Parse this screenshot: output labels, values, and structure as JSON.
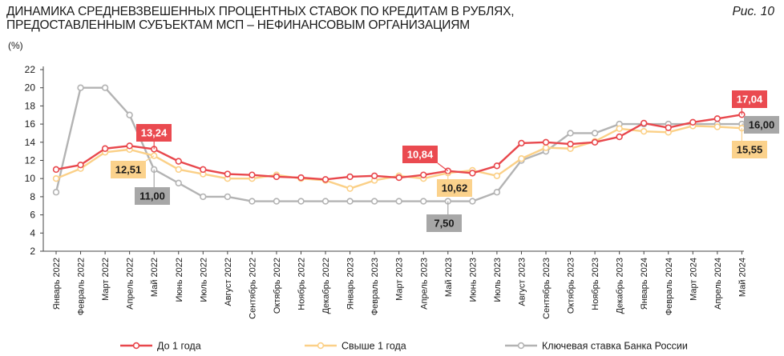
{
  "header": {
    "title_line1": "ДИНАМИКА СРЕДНЕВЗВЕШЕННЫХ ПРОЦЕНТНЫХ СТАВОК ПО КРЕДИТАМ В РУБЛЯХ,",
    "title_line2": "ПРЕДОСТАВЛЕННЫМ СУБЪЕКТАМ МСП – НЕФИНАНСОВЫМ ОРГАНИЗАЦИЯМ",
    "figure_label": "Рис. 10",
    "unit": "(%)"
  },
  "colors": {
    "red": "#e8474c",
    "yellow": "#fbd087",
    "gray": "#b3b3b3",
    "red_label_bg": "#ea4a50",
    "yellow_label_bg": "#fbd28c",
    "gray_label_bg": "#a7a7a7"
  },
  "chart_data": {
    "type": "line",
    "categories": [
      "Январь 2022",
      "Февраль 2022",
      "Март 2022",
      "Апрель 2022",
      "Май 2022",
      "Июнь 2022",
      "Июль 2022",
      "Август 2022",
      "Сентябрь 2022",
      "Октябрь 2022",
      "Ноябрь 2022",
      "Декабрь 2022",
      "Январь 2023",
      "Февраль 2023",
      "Март 2023",
      "Апрель 2023",
      "Май 2023",
      "Июнь 2023",
      "Июль 2023",
      "Август 2023",
      "Сентябрь 2023",
      "Октябрь 2023",
      "Ноябрь 2023",
      "Декабрь 2023",
      "Январь 2024",
      "Февраль 2024",
      "Март 2024",
      "Апрель 2024",
      "Май 2024"
    ],
    "ylim": [
      2,
      22
    ],
    "yticks": [
      2,
      4,
      6,
      8,
      10,
      12,
      14,
      16,
      18,
      20,
      22
    ],
    "grid": false,
    "legend_position": "bottom",
    "series": [
      {
        "name": "До 1 года",
        "color": "#e8474c",
        "values": [
          11.0,
          11.5,
          13.3,
          13.6,
          13.24,
          11.9,
          11.0,
          10.5,
          10.4,
          10.2,
          10.1,
          9.9,
          10.2,
          10.3,
          10.1,
          10.4,
          10.84,
          10.6,
          11.4,
          13.9,
          14.0,
          13.8,
          14.0,
          14.6,
          16.1,
          15.6,
          16.2,
          16.6,
          17.04
        ]
      },
      {
        "name": "Свыше 1 года",
        "color": "#fbd087",
        "values": [
          10.0,
          11.1,
          12.9,
          13.2,
          12.51,
          11.0,
          10.5,
          10.0,
          10.0,
          10.4,
          10.0,
          9.8,
          8.9,
          9.8,
          10.3,
          10.0,
          10.62,
          10.9,
          10.3,
          12.2,
          13.4,
          13.3,
          14.1,
          15.5,
          15.2,
          15.1,
          15.8,
          15.7,
          15.55
        ]
      },
      {
        "name": "Ключевая ставка Банка России",
        "color": "#b3b3b3",
        "values": [
          8.5,
          20.0,
          20.0,
          17.0,
          11.0,
          9.5,
          8.0,
          8.0,
          7.5,
          7.5,
          7.5,
          7.5,
          7.5,
          7.5,
          7.5,
          7.5,
          7.5,
          7.5,
          8.5,
          12.0,
          13.0,
          15.0,
          15.0,
          16.0,
          16.0,
          16.0,
          16.0,
          16.0,
          16.0
        ]
      }
    ],
    "annotations": [
      {
        "text": "13,24",
        "series": 0,
        "index": 4
      },
      {
        "text": "12,51",
        "series": 1,
        "index": 4
      },
      {
        "text": "11,00",
        "series": 2,
        "index": 4
      },
      {
        "text": "10,84",
        "series": 0,
        "index": 16
      },
      {
        "text": "10,62",
        "series": 1,
        "index": 16
      },
      {
        "text": "7,50",
        "series": 2,
        "index": 16
      },
      {
        "text": "17,04",
        "series": 0,
        "index": 28
      },
      {
        "text": "16,00",
        "series": 2,
        "index": 28
      },
      {
        "text": "15,55",
        "series": 1,
        "index": 28
      }
    ]
  }
}
